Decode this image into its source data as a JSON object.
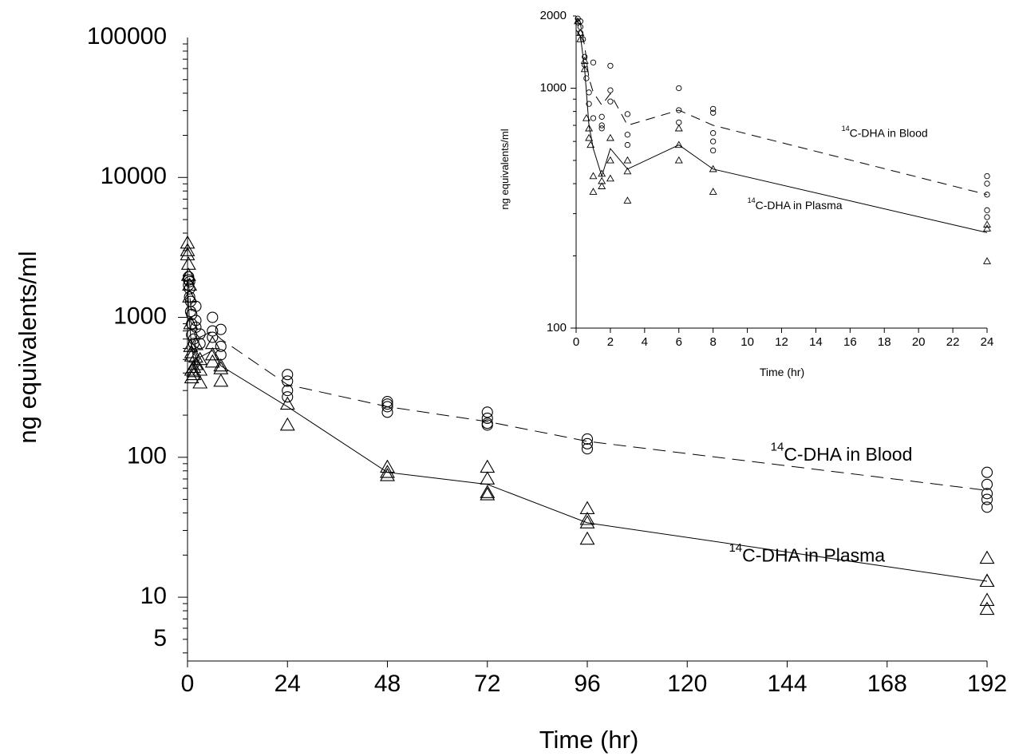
{
  "chart_data": [
    {
      "type": "scatter",
      "panel": "main",
      "xlabel": "Time (hr)",
      "ylabel": "ng equivalents/ml",
      "xlim": [
        0,
        192
      ],
      "ylim": [
        3.5,
        100000
      ],
      "yscale": "log",
      "xticks": [
        0,
        24,
        48,
        72,
        96,
        120,
        144,
        168,
        192
      ],
      "yticks": [
        {
          "value": 5,
          "label": "5"
        },
        {
          "value": 10,
          "label": "10"
        },
        {
          "value": 100,
          "label": "100"
        },
        {
          "value": 1000,
          "label": "1000"
        },
        {
          "value": 10000,
          "label": "10000"
        },
        {
          "value": 100000,
          "label": "100000"
        }
      ],
      "grid": false,
      "series": [
        {
          "marker": "circle",
          "line": "dashed",
          "line_x": [
            0,
            0.5,
            1,
            2,
            3,
            6,
            8,
            24,
            48,
            72,
            96,
            192
          ],
          "line_y": [
            1900,
            1500,
            1000,
            850,
            720,
            800,
            700,
            330,
            230,
            180,
            130,
            58
          ],
          "points": [
            [
              0.25,
              1950
            ],
            [
              0.25,
              1850
            ],
            [
              0.25,
              1700
            ],
            [
              0.5,
              1800
            ],
            [
              0.5,
              1600
            ],
            [
              0.5,
              1400
            ],
            [
              0.75,
              1300
            ],
            [
              0.75,
              1100
            ],
            [
              1,
              1050
            ],
            [
              1,
              900
            ],
            [
              1,
              750
            ],
            [
              1.5,
              700
            ],
            [
              1.5,
              650
            ],
            [
              2,
              1200
            ],
            [
              2,
              950
            ],
            [
              2,
              850
            ],
            [
              3,
              760
            ],
            [
              3,
              650
            ],
            [
              6,
              1000
            ],
            [
              6,
              800
            ],
            [
              6,
              720
            ],
            [
              8,
              820
            ],
            [
              8,
              620
            ],
            [
              8,
              540
            ],
            [
              24,
              390
            ],
            [
              24,
              350
            ],
            [
              24,
              300
            ],
            [
              24,
              270
            ],
            [
              48,
              250
            ],
            [
              48,
              240
            ],
            [
              48,
              230
            ],
            [
              48,
              210
            ],
            [
              72,
              210
            ],
            [
              72,
              190
            ],
            [
              72,
              175
            ],
            [
              72,
              170
            ],
            [
              96,
              135
            ],
            [
              96,
              125
            ],
            [
              96,
              115
            ],
            [
              192,
              78
            ],
            [
              192,
              64
            ],
            [
              192,
              55
            ],
            [
              192,
              50
            ],
            [
              192,
              44
            ]
          ]
        },
        {
          "marker": "triangle",
          "line": "solid",
          "line_x": [
            0,
            0.5,
            1,
            2,
            3,
            6,
            8,
            24,
            48,
            72,
            96,
            192
          ],
          "line_y": [
            1700,
            900,
            600,
            430,
            520,
            580,
            450,
            230,
            78,
            64,
            34,
            13
          ],
          "points": [
            [
              0,
              3400
            ],
            [
              0,
              3000
            ],
            [
              0,
              2800
            ],
            [
              0.25,
              2400
            ],
            [
              0.25,
              2000
            ],
            [
              0.5,
              1700
            ],
            [
              0.5,
              1400
            ],
            [
              0.75,
              900
            ],
            [
              0.75,
              620
            ],
            [
              1,
              560
            ],
            [
              1,
              530
            ],
            [
              1,
              420
            ],
            [
              1,
              370
            ],
            [
              1.5,
              440
            ],
            [
              1.5,
              410
            ],
            [
              1.5,
              390
            ],
            [
              2,
              640
            ],
            [
              2,
              520
            ],
            [
              2,
              460
            ],
            [
              3,
              500
            ],
            [
              3,
              420
            ],
            [
              3,
              340
            ],
            [
              6,
              650
            ],
            [
              6,
              540
            ],
            [
              6,
              480
            ],
            [
              8,
              450
            ],
            [
              8,
              430
            ],
            [
              8,
              350
            ],
            [
              24,
              240
            ],
            [
              24,
              170
            ],
            [
              48,
              85
            ],
            [
              48,
              78
            ],
            [
              48,
              74
            ],
            [
              72,
              85
            ],
            [
              72,
              70
            ],
            [
              72,
              56
            ],
            [
              72,
              54
            ],
            [
              96,
              43
            ],
            [
              96,
              36
            ],
            [
              96,
              34
            ],
            [
              96,
              26
            ],
            [
              192,
              19
            ],
            [
              192,
              13
            ],
            [
              192,
              13
            ],
            [
              192,
              9.5
            ],
            [
              192,
              8.2
            ]
          ]
        }
      ],
      "annotations": [
        {
          "sup": "14",
          "text": "C-DHA  in Blood",
          "at": [
            140,
            100
          ]
        },
        {
          "sup": "14",
          "text": "C-DHA  in Plasma",
          "at": [
            130,
            19
          ]
        }
      ]
    },
    {
      "type": "scatter",
      "panel": "inset",
      "xlabel": "Time  (hr)",
      "ylabel": "ng equivalents/ml",
      "xlim": [
        0,
        24
      ],
      "ylim": [
        100,
        2000
      ],
      "yscale": "log",
      "xticks": [
        0,
        2,
        4,
        6,
        8,
        10,
        12,
        14,
        16,
        18,
        20,
        22,
        24
      ],
      "yticks": [
        {
          "value": 100,
          "label": "100"
        },
        {
          "value": 1000,
          "label": "1000"
        },
        {
          "value": 2000,
          "label": "2000"
        }
      ],
      "grid": false,
      "series": [
        {
          "marker": "circle",
          "line": "dashed",
          "line_x": [
            0,
            0.25,
            0.5,
            0.75,
            1,
            1.5,
            2,
            3,
            6,
            8,
            24
          ],
          "line_y": [
            1900,
            1850,
            1500,
            1100,
            960,
            850,
            950,
            700,
            810,
            700,
            360
          ],
          "points": [
            [
              0.1,
              1950
            ],
            [
              0.1,
              1880
            ],
            [
              0.25,
              1900
            ],
            [
              0.25,
              1800
            ],
            [
              0.25,
              1700
            ],
            [
              0.4,
              1600
            ],
            [
              0.5,
              1350
            ],
            [
              0.5,
              1250
            ],
            [
              0.6,
              1100
            ],
            [
              0.75,
              960
            ],
            [
              0.75,
              860
            ],
            [
              1,
              1280
            ],
            [
              1,
              750
            ],
            [
              1.5,
              760
            ],
            [
              1.5,
              700
            ],
            [
              1.5,
              680
            ],
            [
              2,
              1240
            ],
            [
              2,
              980
            ],
            [
              2,
              880
            ],
            [
              3,
              780
            ],
            [
              3,
              640
            ],
            [
              3,
              580
            ],
            [
              6,
              1000
            ],
            [
              6,
              810
            ],
            [
              6,
              720
            ],
            [
              8,
              820
            ],
            [
              8,
              790
            ],
            [
              8,
              650
            ],
            [
              8,
              600
            ],
            [
              8,
              550
            ],
            [
              24,
              430
            ],
            [
              24,
              400
            ],
            [
              24,
              360
            ],
            [
              24,
              310
            ],
            [
              24,
              290
            ]
          ]
        },
        {
          "marker": "triangle",
          "line": "solid",
          "line_x": [
            0,
            0.25,
            0.5,
            0.75,
            1,
            1.5,
            2,
            3,
            6,
            8,
            24
          ],
          "line_y": [
            1750,
            1650,
            1200,
            700,
            560,
            430,
            560,
            460,
            580,
            460,
            250
          ],
          "points": [
            [
              0.1,
              1900
            ],
            [
              0.25,
              1700
            ],
            [
              0.25,
              1600
            ],
            [
              0.5,
              1300
            ],
            [
              0.5,
              1200
            ],
            [
              0.6,
              750
            ],
            [
              0.75,
              680
            ],
            [
              0.75,
              620
            ],
            [
              0.85,
              580
            ],
            [
              1,
              430
            ],
            [
              1,
              370
            ],
            [
              1.5,
              440
            ],
            [
              1.5,
              410
            ],
            [
              1.5,
              390
            ],
            [
              2,
              620
            ],
            [
              2,
              500
            ],
            [
              2,
              420
            ],
            [
              3,
              500
            ],
            [
              3,
              450
            ],
            [
              3,
              340
            ],
            [
              6,
              680
            ],
            [
              6,
              580
            ],
            [
              6,
              500
            ],
            [
              8,
              460
            ],
            [
              8,
              370
            ],
            [
              24,
              270
            ],
            [
              24,
              260
            ],
            [
              24,
              190
            ]
          ]
        }
      ],
      "annotations": [
        {
          "sup": "14",
          "text": "C-DHA  in Blood",
          "at": [
            15.5,
            640
          ]
        },
        {
          "sup": "14",
          "text": "C-DHA  in Plasma",
          "at": [
            10,
            320
          ]
        }
      ]
    }
  ]
}
